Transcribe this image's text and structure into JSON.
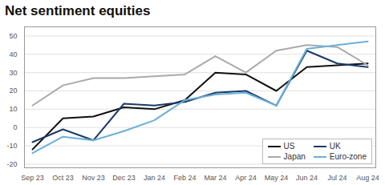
{
  "chart_data": {
    "type": "line",
    "title": "Net sentiment equities",
    "categories": [
      "Sep 23",
      "Oct 23",
      "Nov 23",
      "Dec 23",
      "Jan 24",
      "Feb 24",
      "Mar 24",
      "Apr 24",
      "May 24",
      "Jun 24",
      "Jul 24",
      "Aug 24"
    ],
    "series": [
      {
        "name": "US",
        "color": "#111111",
        "values": [
          -12,
          5,
          6,
          11,
          10,
          15,
          30,
          29,
          20,
          33,
          34,
          35
        ]
      },
      {
        "name": "UK",
        "color": "#1a3a6b",
        "values": [
          -8,
          -1,
          -7,
          13,
          12,
          14,
          19,
          20,
          12,
          42,
          35,
          33
        ]
      },
      {
        "name": "Japan",
        "color": "#aaaaaa",
        "values": [
          12,
          23,
          27,
          27,
          28,
          29,
          39,
          30,
          42,
          45,
          44,
          34
        ]
      },
      {
        "name": "Euro-zone",
        "color": "#6ab0d8",
        "values": [
          -14,
          -5,
          -7,
          -2,
          4,
          15,
          18,
          19,
          12,
          43,
          45,
          47
        ]
      }
    ],
    "ylim": [
      -22,
      55
    ],
    "yticks": [
      -20,
      -10,
      0,
      10,
      20,
      30,
      40,
      50
    ],
    "grid": true,
    "legend": "lower right"
  }
}
